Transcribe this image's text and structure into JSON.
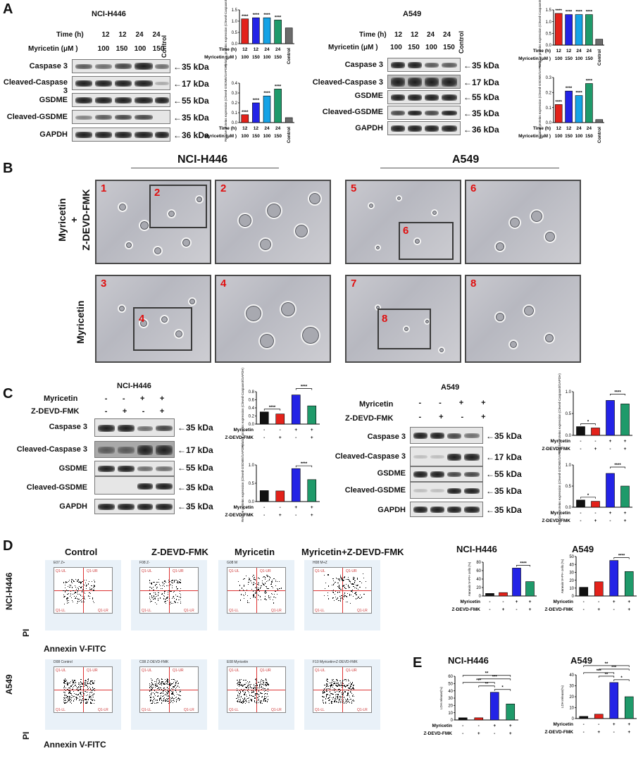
{
  "panels": {
    "A": {
      "label": "A",
      "left": {
        "title": "NCI-H446",
        "time_label": "Time (h)",
        "time_values": [
          "12",
          "12",
          "24",
          "24"
        ],
        "dose_label": "Myricetin (μM )",
        "dose_values": [
          "100",
          "150",
          "100",
          "150"
        ],
        "control": "Control",
        "rows": [
          "Caspase 3",
          "Cleaved-Caspase 3",
          "GSDME",
          "Cleaved-GSDME",
          "GAPDH"
        ],
        "markers": [
          "←35 kDa",
          "←17 kDa",
          "←55 kDa",
          "←35 kDa",
          "←36 kDa"
        ]
      },
      "right": {
        "title": "A549",
        "time_label": "Time (h)",
        "time_values": [
          "12",
          "12",
          "24",
          "24"
        ],
        "dose_label": "Myricetin (μM )",
        "dose_values": [
          "100",
          "150",
          "100",
          "150"
        ],
        "control": "Control",
        "rows": [
          "Caspase 3",
          "Cleaved-Caspase 3",
          "GSDME",
          "Cleaved-GSDME",
          "GAPDH"
        ],
        "markers": [
          "←35 kDa",
          "←17 kDa",
          "←55 kDa",
          "←35 kDa",
          "←36 kDa"
        ]
      }
    },
    "B": {
      "label": "B",
      "left_title": "NCI-H446",
      "right_title": "A549",
      "row1_label_a": "Myricetin",
      "row1_label_b": "+",
      "row1_label_c": "Z-DEVD-FMK",
      "row2_label": "Myricetin",
      "tiles": [
        "1",
        "2",
        "5",
        "6",
        "3",
        "4",
        "7",
        "8"
      ],
      "inset_numbers": [
        "2",
        "6",
        "4",
        "8"
      ]
    },
    "C": {
      "label": "C",
      "left": {
        "title": "NCI-H446",
        "treat1": "Myricetin",
        "treat1_signs": [
          "-",
          "-",
          "+",
          "+"
        ],
        "treat2": "Z-DEVD-FMK",
        "treat2_signs": [
          "-",
          "+",
          "-",
          "+"
        ],
        "rows": [
          "Caspase 3",
          "Cleaved-Caspase 3",
          "GSDME",
          "Cleaved-GSDME",
          "GAPDH"
        ],
        "markers": [
          "←35 kDa",
          "←17 kDa",
          "←55 kDa",
          "←35 kDa",
          "←35 kDa"
        ]
      },
      "right": {
        "title": "A549",
        "treat1": "Myricetin",
        "treat1_signs": [
          "-",
          "-",
          "+",
          "+"
        ],
        "treat2": "Z-DEVD-FMK",
        "treat2_signs": [
          "-",
          "+",
          "-",
          "+"
        ],
        "rows": [
          "Caspase 3",
          "Cleaved-Caspase 3",
          "GSDME",
          "Cleaved-GSDME",
          "GAPDH"
        ],
        "markers": [
          "←35 kDa",
          "←17 kDa",
          "←55 kDa",
          "←35 kDa",
          "←35 kDa"
        ]
      }
    },
    "D": {
      "label": "D",
      "col_titles": [
        "Control",
        "Z-DEVD-FMK",
        "Myricetin",
        "Myricetin+Z-DEVD-FMK"
      ],
      "row1": "NCI-H446",
      "row2": "A549",
      "y_axis": "PI",
      "x_axis": "Annexin V-FITC",
      "row1_headers": [
        "E07 Z+\nGate: R1",
        "F08 Z-\nGate: R1",
        "G08 M\nGate: R1",
        "H08 M+Z\nGate: R1"
      ],
      "row2_headers": [
        "D08 Control\nGate: R1",
        "C08 Z-DEVD-FMK\nGate: R1",
        "E08 Myricetin\nGate: R1",
        "F10 Myricetin+Z-DEVD-FMK\nGate: R1"
      ],
      "quad": [
        "Q1-UL",
        "Q1-UR",
        "Q1-LL",
        "Q1-LR"
      ],
      "bar_left_title": "NCI-H446",
      "bar_right_title": "A549"
    },
    "E": {
      "label": "E",
      "bar_left_title": "NCI-H446",
      "bar_right_title": "A549"
    }
  },
  "colors": {
    "black": "#111111",
    "red": "#e3221b",
    "blue": "#2323e6",
    "green": "#1f9a6a",
    "cyan": "#15a3e6",
    "gray": "#6b6b6b"
  },
  "chart_data": [
    {
      "id": "A-NCI-casp3",
      "type": "bar",
      "categories": [
        "12/100",
        "12/150",
        "24/100",
        "24/150",
        "Control"
      ],
      "values": [
        1.1,
        1.15,
        1.15,
        1.05,
        0.7
      ],
      "ylabel": "Relative proteins expression (Cleved-Caspase3/GAPDH)",
      "ylim": [
        0,
        1.5
      ],
      "ticks": [
        "0.0",
        "0.5",
        "1.0",
        "1.5"
      ],
      "sig": [
        "****",
        "****",
        "****",
        "****",
        ""
      ],
      "xrows": [
        [
          "Time (h)",
          "12",
          "12",
          "24",
          "24"
        ],
        [
          "Myricetin (μM )",
          "100",
          "150",
          "100",
          "150"
        ]
      ],
      "control_label": "Control",
      "colors": [
        "#e3221b",
        "#2323e6",
        "#15a3e6",
        "#1f9a6a",
        "#6b6b6b"
      ]
    },
    {
      "id": "A-NCI-gsdme",
      "type": "bar",
      "categories": [
        "12/100",
        "12/150",
        "24/100",
        "24/150",
        "Control"
      ],
      "values": [
        0.08,
        0.2,
        0.27,
        0.34,
        0.05
      ],
      "ylabel": "Relative proteins expression (Cleved-GSDME/GAPDH)",
      "ylim": [
        0,
        0.4
      ],
      "ticks": [
        "0.0",
        "0.1",
        "0.2",
        "0.3",
        "0.4"
      ],
      "sig": [
        "****",
        "****",
        "****",
        "****",
        ""
      ],
      "xrows": [
        [
          "Time (h)",
          "12",
          "12",
          "24",
          "24"
        ],
        [
          "Myricetin (μM )",
          "100",
          "150",
          "100",
          "150"
        ]
      ],
      "control_label": "Control",
      "colors": [
        "#e3221b",
        "#2323e6",
        "#15a3e6",
        "#1f9a6a",
        "#6b6b6b"
      ]
    },
    {
      "id": "A-A549-casp3",
      "type": "bar",
      "categories": [
        "12/100",
        "12/150",
        "24/100",
        "24/150",
        "Control"
      ],
      "values": [
        1.35,
        1.3,
        1.3,
        1.3,
        0.25
      ],
      "ylabel": "Relative proteins expression (Cleved-Caspase3/GAPDH)",
      "ylim": [
        0,
        1.5
      ],
      "ticks": [
        "0.0",
        "0.5",
        "1.0",
        "1.5"
      ],
      "sig": [
        "****",
        "****",
        "****",
        "****",
        ""
      ],
      "xrows": [
        [
          "Time (h)",
          "12",
          "12",
          "24",
          "24"
        ],
        [
          "Myricetin (μM )",
          "100",
          "150",
          "100",
          "150"
        ]
      ],
      "control_label": "Control",
      "colors": [
        "#e3221b",
        "#2323e6",
        "#15a3e6",
        "#1f9a6a",
        "#6b6b6b"
      ]
    },
    {
      "id": "A-A549-gsdme",
      "type": "bar",
      "categories": [
        "12/100",
        "12/150",
        "24/100",
        "24/150",
        "Control"
      ],
      "values": [
        0.12,
        0.21,
        0.18,
        0.26,
        0.02
      ],
      "ylabel": "Relative proteins expression (Cleved-GSDME/GAPDH)",
      "ylim": [
        0,
        0.3
      ],
      "ticks": [
        "0.0",
        "0.1",
        "0.2",
        "0.3"
      ],
      "sig": [
        "****",
        "****",
        "****",
        "****",
        ""
      ],
      "xrows": [
        [
          "Time (h)",
          "12",
          "12",
          "24",
          "24"
        ],
        [
          "Myricetin (μM )",
          "100",
          "150",
          "100",
          "150"
        ]
      ],
      "control_label": "Control",
      "colors": [
        "#e3221b",
        "#2323e6",
        "#15a3e6",
        "#1f9a6a",
        "#6b6b6b"
      ]
    },
    {
      "id": "C-NCI-casp3",
      "type": "bar",
      "categories": [
        "-/-",
        "-/+",
        "+/-",
        "+/+"
      ],
      "values": [
        0.3,
        0.25,
        0.72,
        0.45
      ],
      "ylabel": "Relative proteins expression (Cleved-Caspase3/GAPDH)",
      "ylim": [
        0,
        0.8
      ],
      "ticks": [
        "0.0",
        "0.2",
        "0.4",
        "0.6",
        "0.8"
      ],
      "brackets": [
        {
          "from": 0,
          "to": 1,
          "text": "****"
        },
        {
          "from": 2,
          "to": 3,
          "text": "****"
        }
      ],
      "xrows": [
        [
          "Myricetin",
          "-",
          "-",
          "+",
          "+"
        ],
        [
          "Z-DEVD-FMK",
          "-",
          "+",
          "-",
          "+"
        ]
      ],
      "colors": [
        "#111111",
        "#e3221b",
        "#2323e6",
        "#1f9a6a"
      ]
    },
    {
      "id": "C-NCI-gsdme",
      "type": "bar",
      "categories": [
        "-/-",
        "-/+",
        "+/-",
        "+/+"
      ],
      "values": [
        0.3,
        0.29,
        0.9,
        0.6
      ],
      "ylabel": "Relative proteins expression (Cleved-GSDME/GAPDH)",
      "ylim": [
        0,
        1.0
      ],
      "ticks": [
        "0.0",
        "0.5",
        "1.0"
      ],
      "brackets": [
        {
          "from": 2,
          "to": 3,
          "text": "****"
        }
      ],
      "xrows": [
        [
          "Myricetin",
          "-",
          "-",
          "+",
          "+"
        ],
        [
          "Z-DEVD-FMK",
          "-",
          "+",
          "-",
          "+"
        ]
      ],
      "colors": [
        "#111111",
        "#e3221b",
        "#2323e6",
        "#1f9a6a"
      ]
    },
    {
      "id": "C-A549-casp3",
      "type": "bar",
      "categories": [
        "-/-",
        "-/+",
        "+/-",
        "+/+"
      ],
      "values": [
        0.2,
        0.17,
        0.8,
        0.72
      ],
      "ylabel": "Relative proteins expression (Cleved-Caspase3/GAPDH)",
      "ylim": [
        0,
        1.0
      ],
      "ticks": [
        "0.0",
        "0.5",
        "1.0"
      ],
      "brackets": [
        {
          "from": 0,
          "to": 1,
          "text": "*"
        },
        {
          "from": 2,
          "to": 3,
          "text": "****"
        }
      ],
      "xrows": [
        [
          "Myricetin",
          "-",
          "-",
          "+",
          "+"
        ],
        [
          "Z-DEVD-FMK",
          "-",
          "+",
          "-",
          "+"
        ]
      ],
      "colors": [
        "#111111",
        "#e3221b",
        "#2323e6",
        "#1f9a6a"
      ]
    },
    {
      "id": "C-A549-gsdme",
      "type": "bar",
      "categories": [
        "-/-",
        "-/+",
        "+/-",
        "+/+"
      ],
      "values": [
        0.17,
        0.14,
        0.8,
        0.5
      ],
      "ylabel": "Relative proteins expression (Cleved-GSDME/GAPDH)",
      "ylim": [
        0,
        1.0
      ],
      "ticks": [
        "0.0",
        "0.5",
        "1.0"
      ],
      "brackets": [
        {
          "from": 0,
          "to": 1,
          "text": "*"
        },
        {
          "from": 2,
          "to": 3,
          "text": "****"
        }
      ],
      "xrows": [
        [
          "Myricetin",
          "-",
          "-",
          "+",
          "+"
        ],
        [
          "Z-DEVD-FMK",
          "-",
          "+",
          "-",
          "+"
        ]
      ],
      "colors": [
        "#111111",
        "#e3221b",
        "#2323e6",
        "#1f9a6a"
      ]
    },
    {
      "id": "D-NCI",
      "type": "bar",
      "title": "NCI-H446",
      "categories": [
        "-/-",
        "-/+",
        "+/-",
        "+/+"
      ],
      "values": [
        6,
        8,
        66,
        34
      ],
      "ylabel": "Annexin V+PI+ cells (%)",
      "ylim": [
        0,
        80
      ],
      "ticks": [
        "0",
        "20",
        "40",
        "60",
        "80"
      ],
      "brackets": [
        {
          "from": 2,
          "to": 3,
          "text": "****"
        }
      ],
      "xrows": [
        [
          "Myricetin",
          "-",
          "-",
          "+",
          "+"
        ],
        [
          "Z-DEVD-FMK",
          "-",
          "+",
          "-",
          "+"
        ]
      ],
      "colors": [
        "#111111",
        "#e3221b",
        "#2323e6",
        "#1f9a6a"
      ]
    },
    {
      "id": "D-A549",
      "type": "bar",
      "title": "A549",
      "categories": [
        "-/-",
        "-/+",
        "+/-",
        "+/+"
      ],
      "values": [
        11,
        18,
        45,
        31
      ],
      "ylabel": "Annexin V+PI+ cells (%)",
      "ylim": [
        0,
        50
      ],
      "ticks": [
        "0",
        "10",
        "20",
        "30",
        "40",
        "50"
      ],
      "brackets": [
        {
          "from": 2,
          "to": 3,
          "text": "****"
        }
      ],
      "xrows": [
        [
          "Myricetin",
          "-",
          "-",
          "+",
          "+"
        ],
        [
          "Z-DEVD-FMK",
          "-",
          "+",
          "-",
          "+"
        ]
      ],
      "colors": [
        "#111111",
        "#e3221b",
        "#2323e6",
        "#1f9a6a"
      ]
    },
    {
      "id": "E-NCI",
      "type": "bar",
      "title": "NCI-H446",
      "categories": [
        "-/-",
        "-/+",
        "+/-",
        "+/+"
      ],
      "values": [
        3,
        3,
        38,
        22
      ],
      "ylabel": "LDH release(%)",
      "ylim": [
        0,
        60
      ],
      "ticks": [
        "0",
        "10",
        "20",
        "30",
        "40",
        "50",
        "60"
      ],
      "brackets": [
        {
          "from": 2,
          "to": 3,
          "text": "*"
        },
        {
          "from": 1,
          "to": 2,
          "text": "**"
        },
        {
          "from": 0,
          "to": 2,
          "text": "***"
        },
        {
          "from": 1,
          "to": 3,
          "text": "***"
        },
        {
          "from": 0,
          "to": 3,
          "text": "**"
        }
      ],
      "xrows": [
        [
          "Myricetin",
          "-",
          "-",
          "+",
          "+"
        ],
        [
          "Z-DEVD-FMK",
          "-",
          "+",
          "-",
          "+"
        ]
      ],
      "colors": [
        "#111111",
        "#e3221b",
        "#2323e6",
        "#1f9a6a"
      ]
    },
    {
      "id": "E-A549",
      "type": "bar",
      "title": "A549",
      "categories": [
        "-/-",
        "-/+",
        "+/-",
        "+/+"
      ],
      "values": [
        2,
        4,
        33,
        20
      ],
      "ylabel": "LDH release(%)",
      "ylim": [
        0,
        40
      ],
      "ticks": [
        "0",
        "10",
        "20",
        "30",
        "40"
      ],
      "brackets": [
        {
          "from": 2,
          "to": 3,
          "text": "*"
        },
        {
          "from": 1,
          "to": 2,
          "text": "**"
        },
        {
          "from": 0,
          "to": 2,
          "text": "***"
        },
        {
          "from": 1,
          "to": 3,
          "text": "***"
        },
        {
          "from": 0,
          "to": 3,
          "text": "**"
        }
      ],
      "xrows": [
        [
          "Myricetin",
          "-",
          "-",
          "+",
          "+"
        ],
        [
          "Z-DEVD-FMK",
          "-",
          "+",
          "-",
          "+"
        ]
      ],
      "colors": [
        "#111111",
        "#e3221b",
        "#2323e6",
        "#1f9a6a"
      ]
    }
  ]
}
